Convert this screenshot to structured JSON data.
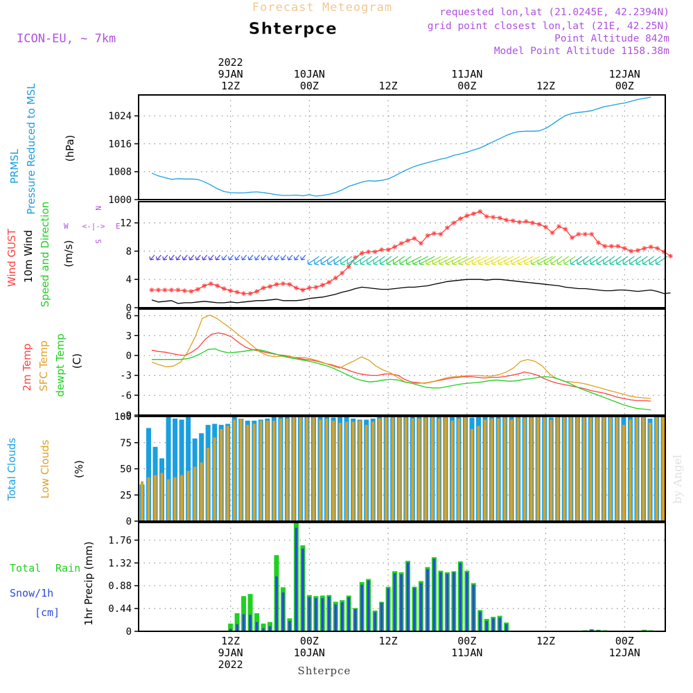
{
  "header": {
    "title": "Forecast Meteogram",
    "location": "Shterpce",
    "model": "ICON-EU,  ~ 7km",
    "requested": "requested lon,lat (21.0245E, 42.2394N)",
    "grid_point": "grid point closest lon,lat (21E, 42.25N)",
    "point_altitude": "Point Altitude 842m",
    "model_altitude": "Model Point Altitude 1158.38m",
    "credit": "by Angel",
    "bottom_label": "Shterpce"
  },
  "time_axis": {
    "top": [
      {
        "hour": 12,
        "lines": [
          "2022",
          "9JAN",
          "12Z"
        ]
      },
      {
        "hour": 24,
        "lines": [
          "10JAN",
          "00Z"
        ]
      },
      {
        "hour": 36,
        "lines": [
          "12Z"
        ]
      },
      {
        "hour": 48,
        "lines": [
          "11JAN",
          "00Z"
        ]
      },
      {
        "hour": 60,
        "lines": [
          "12Z"
        ]
      },
      {
        "hour": 72,
        "lines": [
          "12JAN",
          "00Z"
        ]
      }
    ],
    "bottom": [
      {
        "hour": 12,
        "lines": [
          "12Z",
          "9JAN",
          "2022"
        ]
      },
      {
        "hour": 24,
        "lines": [
          "00Z",
          "10JAN"
        ]
      },
      {
        "hour": 36,
        "lines": [
          "12Z"
        ]
      },
      {
        "hour": 48,
        "lines": [
          "00Z",
          "11JAN"
        ]
      },
      {
        "hour": 60,
        "lines": [
          "12Z"
        ]
      },
      {
        "hour": 72,
        "lines": [
          "00Z",
          "12JAN"
        ]
      }
    ]
  },
  "panel_labels": {
    "pressure": {
      "series": "PRMSL",
      "name": "Pressure Reduced to MSL",
      "unit": "(hPa)"
    },
    "wind": {
      "gust": "Wind GUST",
      "wind10": "10m Wind",
      "dir": "Speed and Direction",
      "unit": "(m/s)",
      "compass": [
        "N",
        "E",
        "S",
        "W"
      ]
    },
    "temp": {
      "t2m": "2m Temp",
      "sfc": "SFC Temp",
      "dew": "dewpt Temp",
      "unit": "(C)"
    },
    "clouds": {
      "total": "Total Clouds",
      "low": "Low Clouds",
      "unit": "(%)"
    },
    "precip": {
      "rain_a": "Total",
      "rain_b": "Rain",
      "snow": "Snow/1h",
      "snow_unit": "[cm]",
      "axis": "1hr Precip (mm)"
    }
  },
  "chart_data": [
    {
      "id": "pressure",
      "type": "line",
      "xlabel": "",
      "ylabel": "(hPa)",
      "ylim": [
        1000,
        1030
      ],
      "yticks": [
        "1000",
        "1008",
        "1016",
        "1024"
      ],
      "grid": true,
      "color": "#1a9fe0",
      "series": [
        {
          "name": "PRMSL",
          "values": [
            1007.6,
            1006.8,
            1006.3,
            1005.8,
            1006.0,
            1005.9,
            1005.9,
            1005.8,
            1005.1,
            1004.2,
            1003.1,
            1002.3,
            1002.0,
            1001.9,
            1001.9,
            1002.1,
            1002.2,
            1002.0,
            1001.7,
            1001.4,
            1001.2,
            1001.2,
            1001.3,
            1001.1,
            1001.4,
            1001.0,
            1001.2,
            1001.5,
            1002.0,
            1002.8,
            1003.8,
            1004.4,
            1005.0,
            1005.4,
            1005.3,
            1005.5,
            1005.9,
            1006.8,
            1007.8,
            1008.7,
            1009.5,
            1010.1,
            1010.6,
            1011.1,
            1011.6,
            1012.0,
            1012.7,
            1013.1,
            1013.6,
            1014.2,
            1014.8,
            1015.7,
            1016.6,
            1017.5,
            1018.4,
            1019.1,
            1019.5,
            1019.6,
            1019.6,
            1019.7,
            1020.4,
            1021.6,
            1022.9,
            1024.1,
            1024.7,
            1025.0,
            1025.2,
            1025.5,
            1026.1,
            1026.7,
            1027.0,
            1027.4,
            1027.7,
            1028.2,
            1028.7,
            1029.0,
            1029.4
          ]
        }
      ]
    },
    {
      "id": "wind",
      "type": "line",
      "xlabel": "",
      "ylabel": "(m/s)",
      "ylim": [
        0,
        15
      ],
      "yticks": [
        "0",
        "4",
        "8",
        "12"
      ],
      "grid": true,
      "series": [
        {
          "name": "Wind GUST",
          "color": "#ff4040",
          "values": [
            2.5,
            2.5,
            2.5,
            2.5,
            2.5,
            2.4,
            2.3,
            2.6,
            3.1,
            3.4,
            3.1,
            2.7,
            2.4,
            2.2,
            2.0,
            2.0,
            2.3,
            2.8,
            3.0,
            3.3,
            3.4,
            3.3,
            2.8,
            2.5,
            2.8,
            2.9,
            3.2,
            3.6,
            4.2,
            4.9,
            5.8,
            7.1,
            7.7,
            7.9,
            7.9,
            8.2,
            8.2,
            8.6,
            9.1,
            9.5,
            9.8,
            9.1,
            10.2,
            10.5,
            10.4,
            11.3,
            12.0,
            12.6,
            13.0,
            13.3,
            13.6,
            12.9,
            12.8,
            12.7,
            12.4,
            12.3,
            12.1,
            12.2,
            12.0,
            11.8,
            11.4,
            10.6,
            11.5,
            11.1,
            9.9,
            10.4,
            10.4,
            10.4,
            9.2,
            8.7,
            8.7,
            8.7,
            8.4,
            8.0,
            8.1,
            8.4,
            8.6,
            8.4,
            7.9,
            7.3
          ]
        },
        {
          "name": "10m Wind",
          "color": "#000000",
          "values": [
            1.1,
            0.8,
            0.9,
            1.0,
            0.6,
            0.7,
            0.7,
            0.8,
            0.9,
            0.8,
            0.7,
            0.7,
            0.8,
            0.7,
            0.8,
            0.9,
            1.0,
            1.0,
            1.1,
            1.2,
            1.0,
            1.0,
            1.0,
            1.1,
            1.3,
            1.4,
            1.5,
            1.7,
            1.9,
            2.2,
            2.4,
            2.7,
            2.9,
            2.8,
            2.7,
            2.6,
            2.6,
            2.7,
            2.8,
            2.9,
            2.9,
            3.0,
            3.1,
            3.3,
            3.5,
            3.7,
            3.8,
            3.9,
            4.0,
            4.0,
            4.0,
            3.9,
            4.0,
            4.0,
            3.9,
            3.8,
            3.7,
            3.6,
            3.5,
            3.4,
            3.3,
            3.2,
            3.1,
            2.9,
            2.8,
            2.7,
            2.7,
            2.6,
            2.5,
            2.4,
            2.4,
            2.5,
            2.5,
            2.4,
            2.3,
            2.4,
            2.5,
            2.3,
            2.0,
            2.1
          ]
        }
      ],
      "direction_arrows": "colored wind barbs along the gust/speed band"
    },
    {
      "id": "temperature",
      "type": "line",
      "xlabel": "",
      "ylabel": "(C)",
      "ylim": [
        -9,
        7
      ],
      "yticks": [
        "-9",
        "-6",
        "-3",
        "0",
        "3",
        "6"
      ],
      "grid": true,
      "series": [
        {
          "name": "2m Temp",
          "color": "#ff4040",
          "values": [
            0.8,
            0.6,
            0.5,
            0.3,
            0.1,
            0.0,
            0.5,
            1.2,
            2.4,
            3.2,
            3.4,
            3.2,
            2.8,
            2.0,
            1.3,
            0.9,
            0.7,
            0.5,
            0.3,
            0.1,
            0.0,
            -0.2,
            -0.4,
            -0.6,
            -0.7,
            -0.9,
            -1.2,
            -1.4,
            -1.7,
            -2.0,
            -2.4,
            -2.7,
            -2.9,
            -3.0,
            -3.0,
            -2.8,
            -2.8,
            -3.0,
            -3.6,
            -4.0,
            -4.1,
            -4.2,
            -4.0,
            -3.8,
            -3.6,
            -3.4,
            -3.3,
            -3.2,
            -3.2,
            -3.3,
            -3.4,
            -3.3,
            -3.3,
            -3.2,
            -3.0,
            -2.8,
            -2.5,
            -2.7,
            -3.0,
            -3.5,
            -3.9,
            -4.2,
            -4.4,
            -4.6,
            -4.8,
            -5.0,
            -5.3,
            -5.5,
            -5.7,
            -6.0,
            -6.3,
            -6.5,
            -6.7,
            -6.8,
            -6.8,
            -6.9
          ]
        },
        {
          "name": "SFC Temp",
          "color": "#e0a020",
          "values": [
            -1.0,
            -1.4,
            -1.7,
            -1.6,
            -1.0,
            0.6,
            2.8,
            5.6,
            6.1,
            5.6,
            4.8,
            4.0,
            3.1,
            2.3,
            1.4,
            0.5,
            0.0,
            -0.2,
            -0.1,
            -0.2,
            -0.3,
            -0.3,
            -0.5,
            -0.8,
            -1.2,
            -1.6,
            -1.9,
            -1.3,
            -0.8,
            -0.2,
            -0.7,
            -1.6,
            -2.2,
            -2.6,
            -3.3,
            -4.0,
            -4.2,
            -4.2,
            -4.1,
            -3.9,
            -3.6,
            -3.3,
            -3.2,
            -3.1,
            -3.0,
            -3.0,
            -3.1,
            -3.1,
            -2.9,
            -2.5,
            -1.9,
            -0.9,
            -0.6,
            -0.9,
            -1.6,
            -2.8,
            -3.5,
            -3.9,
            -4.0,
            -4.1,
            -4.3,
            -4.6,
            -4.9,
            -5.2,
            -5.5,
            -5.8,
            -6.1,
            -6.3,
            -6.4,
            -6.5
          ]
        },
        {
          "name": "dewpt Temp",
          "color": "#20d020",
          "values": [
            -0.6,
            -0.6,
            -0.6,
            -0.6,
            -0.6,
            -0.5,
            -0.2,
            0.3,
            0.9,
            1.0,
            0.6,
            0.4,
            0.5,
            0.6,
            0.8,
            0.9,
            0.7,
            0.4,
            0.1,
            -0.2,
            -0.4,
            -0.6,
            -0.8,
            -1.0,
            -1.3,
            -1.6,
            -2.0,
            -2.5,
            -3.0,
            -3.5,
            -3.8,
            -4.0,
            -3.9,
            -3.7,
            -3.6,
            -3.7,
            -4.0,
            -4.2,
            -4.5,
            -4.8,
            -4.9,
            -4.9,
            -4.7,
            -4.5,
            -4.3,
            -4.2,
            -4.1,
            -4.0,
            -3.8,
            -3.7,
            -3.8,
            -3.9,
            -3.8,
            -3.6,
            -3.5,
            -3.3,
            -3.2,
            -3.3,
            -3.6,
            -4.0,
            -4.5,
            -5.0,
            -5.4,
            -5.8,
            -6.2,
            -6.6,
            -7.0,
            -7.4,
            -7.7,
            -8.0,
            -8.1,
            -8.2
          ]
        }
      ]
    },
    {
      "id": "clouds",
      "type": "bar",
      "xlabel": "",
      "ylabel": "(%)",
      "ylim": [
        0,
        100
      ],
      "yticks": [
        "0",
        "25",
        "50",
        "75",
        "100"
      ],
      "grid": true,
      "series": [
        {
          "name": "Total Clouds",
          "color": "#1a9fe0",
          "values": [
            35,
            89,
            71,
            60,
            100,
            98,
            97,
            100,
            79,
            84,
            92,
            93,
            92,
            93,
            100,
            98,
            96,
            96,
            97,
            98,
            100,
            100,
            100,
            100,
            100,
            100,
            100,
            100,
            100,
            99,
            100,
            100,
            98,
            97,
            97,
            98,
            100,
            100,
            100,
            100,
            100,
            100,
            100,
            100,
            100,
            100,
            100,
            100,
            100,
            100,
            99,
            100,
            100,
            100,
            100,
            100,
            100,
            100,
            100,
            100,
            100,
            100,
            99,
            100,
            100,
            100,
            100,
            100,
            100,
            100,
            100,
            100,
            100,
            100,
            100,
            100,
            100,
            98,
            100,
            100
          ]
        },
        {
          "name": "Low Clouds",
          "color": "#e0a020",
          "values": [
            38,
            42,
            44,
            46,
            40,
            42,
            44,
            48,
            52,
            56,
            70,
            80,
            88,
            91,
            97,
            98,
            92,
            93,
            96,
            96,
            96,
            98,
            98,
            100,
            100,
            100,
            100,
            97,
            98,
            96,
            94,
            95,
            95,
            96,
            92,
            95,
            98,
            99,
            99,
            99,
            99,
            98,
            98,
            99,
            100,
            98,
            99,
            96,
            98,
            99,
            88,
            91,
            97,
            98,
            98,
            99,
            97,
            99,
            99,
            99,
            100,
            100,
            97,
            100,
            100,
            100,
            100,
            100,
            100,
            100,
            100,
            100,
            100,
            92,
            97,
            100,
            100,
            94,
            100,
            100
          ]
        }
      ]
    },
    {
      "id": "precipitation",
      "type": "bar",
      "xlabel": "",
      "ylabel": "1hr Precip (mm)",
      "ylim": [
        0,
        2.1
      ],
      "yticks": [
        "0",
        "0.44",
        "0.88",
        "1.32",
        "1.76"
      ],
      "grid": true,
      "series": [
        {
          "name": "Total",
          "color": "#20d020",
          "values": [
            0,
            0,
            0,
            0,
            0.01,
            0.01,
            0,
            0,
            0,
            0,
            0,
            0,
            0.15,
            0.35,
            0.68,
            0.72,
            0.35,
            0.15,
            0.18,
            1.47,
            0.85,
            0.25,
            2.1,
            1.66,
            0.7,
            0.68,
            0.69,
            0.7,
            0.57,
            0.6,
            0.69,
            0.45,
            0.95,
            1.01,
            0.4,
            0.57,
            0.86,
            1.16,
            1.14,
            1.36,
            0.86,
            0.97,
            1.24,
            1.43,
            1.17,
            1.14,
            1.16,
            1.35,
            1.17,
            0.93,
            0.41,
            0.24,
            0.28,
            0.3,
            0.17,
            0,
            0,
            0,
            0,
            0,
            0,
            0,
            0.01,
            0,
            0,
            0.01,
            0.02,
            0.04,
            0.03,
            0.02,
            0,
            0,
            0,
            0,
            0,
            0.03,
            0.02
          ]
        },
        {
          "name": "Snow/1h",
          "color": "#2a4adc",
          "values": [
            0,
            0,
            0,
            0,
            0,
            0,
            0,
            0,
            0,
            0,
            0,
            0,
            0.05,
            0.14,
            0.33,
            0.32,
            0.18,
            0.06,
            0.1,
            1.06,
            0.75,
            0.2,
            2.0,
            1.6,
            0.66,
            0.64,
            0.64,
            0.67,
            0.52,
            0.56,
            0.66,
            0.43,
            0.9,
            0.98,
            0.37,
            0.55,
            0.83,
            1.12,
            1.1,
            1.33,
            0.84,
            0.93,
            1.2,
            1.4,
            1.14,
            1.11,
            1.14,
            1.32,
            1.14,
            0.9,
            0.38,
            0.2,
            0.25,
            0.26,
            0.14,
            0,
            0,
            0,
            0,
            0,
            0,
            0,
            0,
            0,
            0,
            0,
            0,
            0.03,
            0.02,
            0.01,
            0,
            0,
            0,
            0,
            0,
            0,
            0
          ]
        }
      ]
    }
  ]
}
